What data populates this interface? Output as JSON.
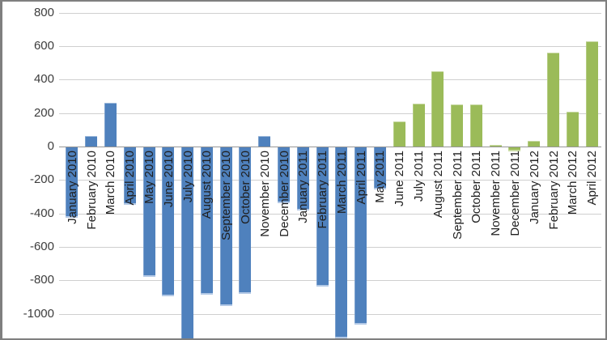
{
  "window": {
    "background": "#ffffff",
    "frame_color": "#7f7f7f"
  },
  "chart_data": {
    "type": "bar",
    "title": "",
    "xlabel": "",
    "ylabel": "",
    "legend": "none",
    "grid": true,
    "categories": [
      "January 2010",
      "February 2010",
      "March 2010",
      "April 2010",
      "May 2010",
      "June 2010",
      "July 2010",
      "August 2010",
      "September 2010",
      "October 2010",
      "November 2010",
      "December 2010",
      "January 2011",
      "February 2011",
      "March 2011",
      "April 2011",
      "May 2011",
      "June 2011",
      "July 2011",
      "August 2011",
      "September 2011",
      "October 2011",
      "November 2011",
      "December 2011",
      "January 2012",
      "February 2012",
      "March 2012",
      "April 2012"
    ],
    "values": [
      -420,
      65,
      260,
      -345,
      -775,
      -890,
      -1200,
      -880,
      -950,
      -875,
      65,
      -335,
      -380,
      -835,
      -1145,
      -1060,
      -250,
      150,
      255,
      450,
      250,
      250,
      10,
      -25,
      35,
      560,
      210,
      630
    ],
    "color_keys": [
      "blue",
      "blue",
      "blue",
      "blue",
      "blue",
      "blue",
      "blue",
      "blue",
      "blue",
      "blue",
      "blue",
      "blue",
      "blue",
      "blue",
      "blue",
      "blue",
      "blue",
      "green",
      "green",
      "green",
      "green",
      "green",
      "green",
      "green",
      "green",
      "green",
      "green",
      "green"
    ],
    "colors": {
      "blue": "#4F81BD",
      "green": "#9BBB59"
    },
    "yticks": [
      800,
      600,
      400,
      200,
      0,
      -200,
      -400,
      -600,
      -800,
      -1000
    ],
    "ylim_visible": [
      -1160,
      800
    ],
    "gridline_color": "#cfcfcf",
    "zero_axis_color": "#969696",
    "clipped_bars": [
      "July 2010"
    ]
  }
}
